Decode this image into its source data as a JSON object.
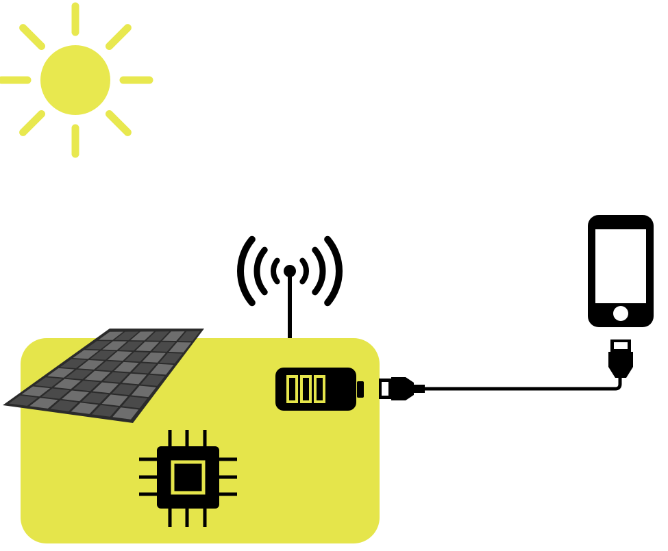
{
  "colors": {
    "background": "#ffffff",
    "accent_yellow": "#e5e54b",
    "sun_yellow": "#e8e84f",
    "ink": "#000000",
    "panel_cell": "#6e6e6e",
    "panel_cell_dark": "#4a4a4a",
    "panel_frame": "#2b2b2b"
  },
  "icons": {
    "sun": "sun-icon",
    "solar_panel": "solar-panel-icon",
    "antenna": "wireless-antenna-icon",
    "battery": "battery-icon",
    "chip": "microchip-icon",
    "usb_cable": "usb-cable-icon",
    "phone": "smartphone-icon"
  },
  "battery": {
    "level_bars": 3,
    "total_bars": 3
  }
}
